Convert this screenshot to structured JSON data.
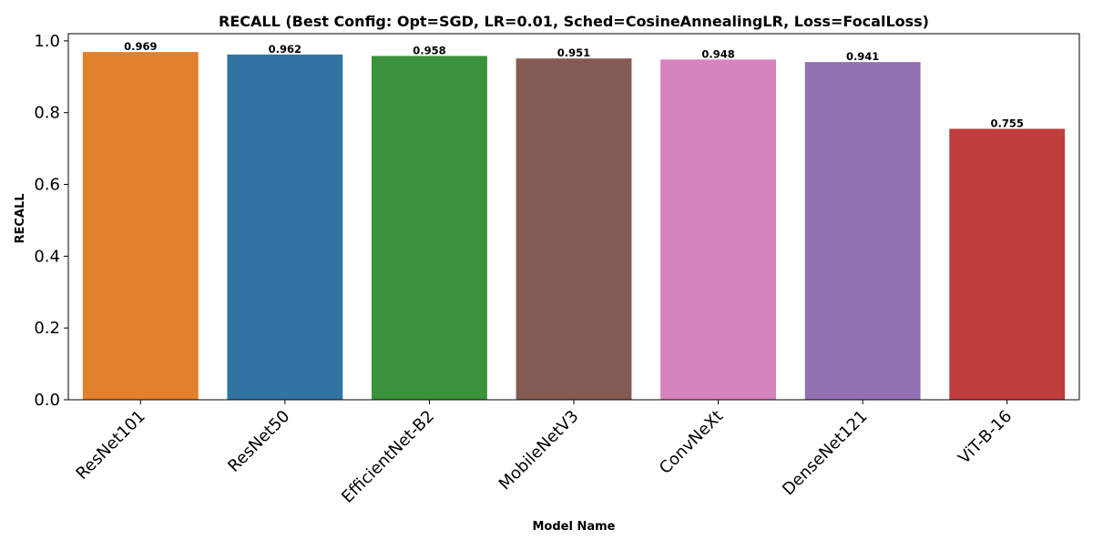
{
  "chart_data": {
    "type": "bar",
    "title": "RECALL (Best Config: Opt=SGD, LR=0.01, Sched=CosineAnnealingLR, Loss=FocalLoss)",
    "xlabel": "Model Name",
    "ylabel": "RECALL",
    "categories": [
      "ResNet101",
      "ResNet50",
      "EfficientNet-B2",
      "MobileNetV3",
      "ConvNeXt",
      "DenseNet121",
      "ViT-B-16"
    ],
    "values": [
      0.969,
      0.962,
      0.958,
      0.951,
      0.948,
      0.941,
      0.755
    ],
    "value_labels": [
      "0.969",
      "0.962",
      "0.958",
      "0.951",
      "0.948",
      "0.941",
      "0.755"
    ],
    "colors": [
      "#e1812c",
      "#3274a1",
      "#3a923a",
      "#845b53",
      "#d684bd",
      "#9372b2",
      "#c03d3e"
    ],
    "ylim": [
      0,
      1.02
    ],
    "yticks": [
      0.0,
      0.2,
      0.4,
      0.6,
      0.8,
      1.0
    ],
    "ytick_labels": [
      "0.0",
      "0.2",
      "0.4",
      "0.6",
      "0.8",
      "1.0"
    ],
    "grid": false,
    "legend": "none"
  }
}
